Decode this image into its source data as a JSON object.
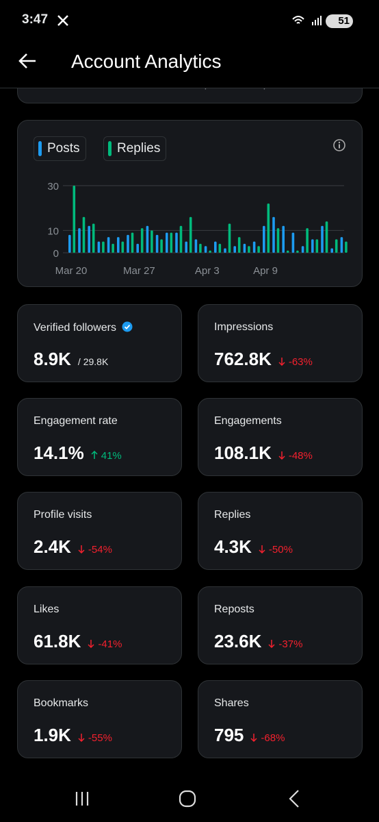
{
  "status_bar": {
    "time": "3:47",
    "battery": "51"
  },
  "header": {
    "title": "Account Analytics"
  },
  "top_card": {
    "dates": [
      "Mar 20",
      "Mar 27",
      "Apr 3",
      "Apr 9"
    ]
  },
  "chart_data": {
    "type": "bar",
    "categories": [
      "Mar 20",
      null,
      null,
      null,
      null,
      null,
      null,
      "Mar 27",
      null,
      null,
      null,
      null,
      null,
      null,
      "Apr 3",
      null,
      null,
      null,
      null,
      null,
      "Apr 9",
      null,
      null,
      null,
      null,
      null,
      null,
      null,
      null
    ],
    "series": [
      {
        "name": "Posts",
        "color": "#1d9bf0",
        "values": [
          8,
          11,
          12,
          5,
          7,
          7,
          8,
          4,
          12,
          8,
          9,
          9,
          5,
          6,
          3,
          5,
          2,
          3,
          4,
          5,
          12,
          16,
          12,
          9,
          3,
          6,
          12,
          2,
          7
        ]
      },
      {
        "name": "Replies",
        "color": "#00ba7c",
        "values": [
          30,
          16,
          13,
          5,
          4,
          5,
          9,
          11,
          10,
          6,
          9,
          12,
          16,
          4,
          1,
          4,
          13,
          7,
          3,
          3,
          22,
          11,
          1,
          1,
          11,
          6,
          14,
          6,
          5
        ]
      }
    ],
    "ylim": [
      0,
      30
    ],
    "yticks": [
      0,
      10,
      30
    ],
    "grid": true
  },
  "stats": [
    {
      "label": "Verified followers",
      "value": "8.9K",
      "total": "/ 29.8K"
    },
    {
      "label": "Impressions",
      "value": "762.8K",
      "change": "-63%"
    },
    {
      "label": "Engagement rate",
      "value": "14.1%",
      "change": "41%"
    },
    {
      "label": "Engagements",
      "value": "108.1K",
      "change": "-48%"
    },
    {
      "label": "Profile visits",
      "value": "2.4K",
      "change": "-54%"
    },
    {
      "label": "Replies",
      "value": "4.3K",
      "change": "-50%"
    },
    {
      "label": "Likes",
      "value": "61.8K",
      "change": "-41%"
    },
    {
      "label": "Reposts",
      "value": "23.6K",
      "change": "-37%"
    },
    {
      "label": "Bookmarks",
      "value": "1.9K",
      "change": "-55%"
    },
    {
      "label": "Shares",
      "value": "795",
      "change": "-68%"
    }
  ]
}
